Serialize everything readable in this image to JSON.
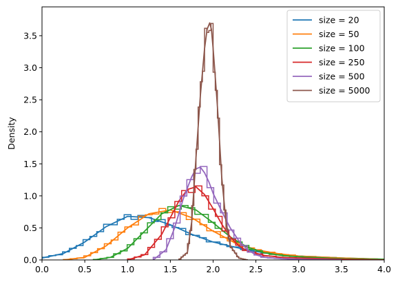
{
  "chart_data": {
    "type": "line",
    "title": "",
    "xlabel": "",
    "ylabel": "Density",
    "xlim": [
      0,
      4.0
    ],
    "ylim": [
      0,
      3.95
    ],
    "xticks": [
      "0.0",
      "0.5",
      "1.0",
      "1.5",
      "2.0",
      "2.5",
      "3.0",
      "3.5",
      "4.0"
    ],
    "yticks": [
      "0.0",
      "0.5",
      "1.0",
      "1.5",
      "2.0",
      "2.5",
      "3.0",
      "3.5"
    ],
    "grid": false,
    "legend_position": "top-right",
    "note": "Each series shown as a smooth density curve plus a step histogram of the same color",
    "series": [
      {
        "name": "size = 20",
        "color": "#1f77b4",
        "x": [
          0.0,
          0.25,
          0.5,
          0.75,
          1.0,
          1.25,
          1.5,
          1.75,
          2.0,
          2.25,
          2.5,
          2.75,
          3.0,
          3.5,
          4.0
        ],
        "y": [
          0.03,
          0.1,
          0.28,
          0.52,
          0.68,
          0.66,
          0.55,
          0.4,
          0.28,
          0.2,
          0.13,
          0.09,
          0.06,
          0.03,
          0.01
        ]
      },
      {
        "name": "size = 50",
        "color": "#ff7f0e",
        "x": [
          0.25,
          0.5,
          0.75,
          1.0,
          1.25,
          1.5,
          1.75,
          2.0,
          2.25,
          2.5,
          2.75,
          3.0,
          3.5,
          4.0
        ],
        "y": [
          0.0,
          0.04,
          0.22,
          0.5,
          0.72,
          0.78,
          0.66,
          0.45,
          0.27,
          0.16,
          0.1,
          0.06,
          0.03,
          0.01
        ]
      },
      {
        "name": "size = 100",
        "color": "#2ca02c",
        "x": [
          0.6,
          0.8,
          1.0,
          1.2,
          1.4,
          1.6,
          1.8,
          2.0,
          2.2,
          2.4,
          2.6,
          2.8,
          3.0,
          3.5,
          4.0
        ],
        "y": [
          0.0,
          0.04,
          0.18,
          0.45,
          0.72,
          0.85,
          0.78,
          0.58,
          0.36,
          0.2,
          0.11,
          0.07,
          0.05,
          0.02,
          0.01
        ]
      },
      {
        "name": "size = 250",
        "color": "#d62728",
        "x": [
          1.0,
          1.2,
          1.4,
          1.5,
          1.6,
          1.7,
          1.8,
          1.9,
          2.0,
          2.1,
          2.2,
          2.3,
          2.4,
          2.6,
          2.8,
          3.0,
          3.5,
          4.0
        ],
        "y": [
          0.0,
          0.08,
          0.4,
          0.66,
          0.92,
          1.1,
          1.14,
          1.02,
          0.8,
          0.56,
          0.36,
          0.22,
          0.14,
          0.07,
          0.04,
          0.03,
          0.01,
          0.0
        ]
      },
      {
        "name": "size = 500",
        "color": "#9467bd",
        "x": [
          1.3,
          1.45,
          1.55,
          1.65,
          1.75,
          1.8,
          1.85,
          1.9,
          1.95,
          2.0,
          2.1,
          2.2,
          2.3,
          2.4,
          2.5,
          2.6,
          2.8,
          3.0,
          3.5
        ],
        "y": [
          0.0,
          0.16,
          0.5,
          0.95,
          1.3,
          1.42,
          1.45,
          1.36,
          1.22,
          1.04,
          0.76,
          0.5,
          0.3,
          0.16,
          0.08,
          0.04,
          0.02,
          0.01,
          0.0
        ]
      },
      {
        "name": "size = 5000",
        "color": "#8c564b",
        "x": [
          1.6,
          1.7,
          1.75,
          1.8,
          1.85,
          1.9,
          1.93,
          1.96,
          1.98,
          2.0,
          2.02,
          2.05,
          2.08,
          2.1,
          2.15,
          2.2,
          2.3,
          2.4
        ],
        "y": [
          0.0,
          0.12,
          0.6,
          1.6,
          2.55,
          3.3,
          3.6,
          3.7,
          3.6,
          3.3,
          2.95,
          2.4,
          1.75,
          1.3,
          0.6,
          0.22,
          0.03,
          0.0
        ]
      }
    ]
  }
}
